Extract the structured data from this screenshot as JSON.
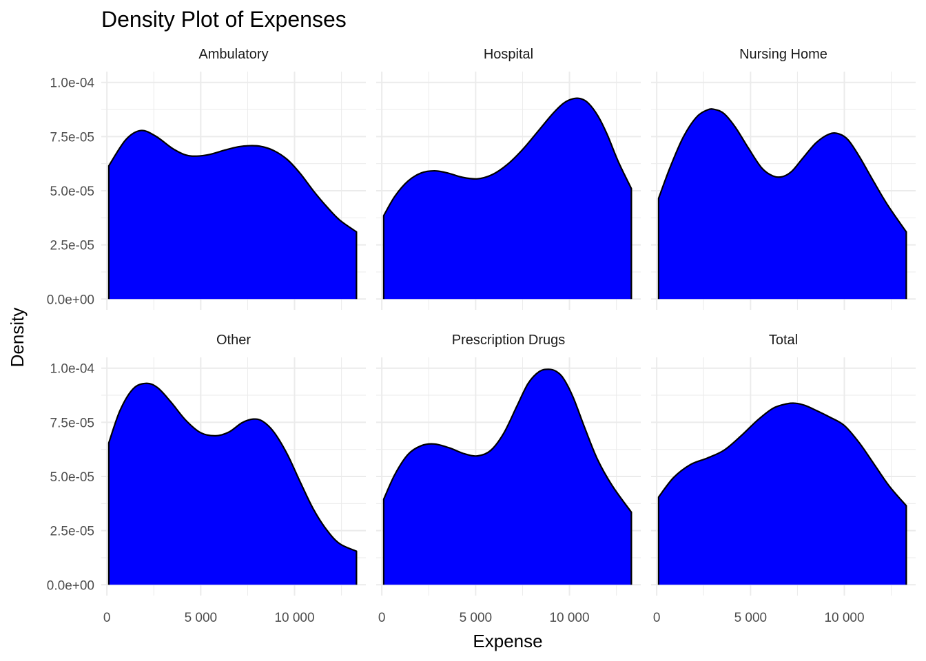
{
  "chart_data": {
    "type": "area",
    "title": "Density Plot of Expenses",
    "xlabel": "Expense",
    "ylabel": "Density",
    "fill_color": "#0000ff",
    "outline_color": "#000000",
    "grid": true,
    "xlim": [
      -300,
      13800
    ],
    "ylim": [
      -5e-06,
      0.000105
    ],
    "x_ticks": [
      0,
      5000,
      10000
    ],
    "x_tick_labels": [
      "0",
      "5 000",
      "10 000"
    ],
    "y_ticks": [
      0,
      2.5e-05,
      5e-05,
      7.5e-05,
      0.0001
    ],
    "y_tick_labels": [
      "0.0e+00",
      "2.5e-05",
      "5.0e-05",
      "7.5e-05",
      "1.0e-04"
    ],
    "x_range": [
      100,
      13300
    ],
    "panels": [
      {
        "name": "Ambulatory",
        "x": [
          100,
          1000,
          1800,
          2600,
          3500,
          4200,
          4800,
          5500,
          6300,
          7000,
          7600,
          8200,
          8900,
          9600,
          10300,
          11000,
          11700,
          12400,
          13300
        ],
        "y": [
          6.15e-05,
          7.35e-05,
          7.78e-05,
          7.52e-05,
          6.95e-05,
          6.65e-05,
          6.6e-05,
          6.68e-05,
          6.88e-05,
          7.03e-05,
          7.08e-05,
          7.05e-05,
          6.85e-05,
          6.45e-05,
          5.8e-05,
          5e-05,
          4.28e-05,
          3.65e-05,
          3.1e-05
        ]
      },
      {
        "name": "Hospital",
        "x": [
          100,
          700,
          1400,
          2100,
          2800,
          3500,
          4300,
          5100,
          5900,
          6700,
          7500,
          8300,
          9100,
          9700,
          10200,
          10600,
          11000,
          11500,
          12000,
          12600,
          13300
        ],
        "y": [
          3.85e-05,
          4.75e-05,
          5.45e-05,
          5.82e-05,
          5.92e-05,
          5.82e-05,
          5.62e-05,
          5.55e-05,
          5.75e-05,
          6.22e-05,
          6.9e-05,
          7.72e-05,
          8.55e-05,
          9.05e-05,
          9.25e-05,
          9.25e-05,
          9.05e-05,
          8.48e-05,
          7.62e-05,
          6.35e-05,
          5.1e-05
        ]
      },
      {
        "name": "Nursing Home",
        "x": [
          100,
          700,
          1400,
          2100,
          2700,
          3100,
          3600,
          4200,
          4900,
          5600,
          6200,
          6700,
          7200,
          7800,
          8500,
          9200,
          9700,
          10200,
          10800,
          11500,
          12300,
          13300
        ],
        "y": [
          4.65e-05,
          6.05e-05,
          7.45e-05,
          8.38e-05,
          8.73e-05,
          8.75e-05,
          8.55e-05,
          7.92e-05,
          6.95e-05,
          6.05e-05,
          5.68e-05,
          5.65e-05,
          5.9e-05,
          6.52e-05,
          7.22e-05,
          7.62e-05,
          7.63e-05,
          7.35e-05,
          6.58e-05,
          5.52e-05,
          4.35e-05,
          3.1e-05
        ]
      },
      {
        "name": "Other",
        "x": [
          100,
          700,
          1400,
          2100,
          2700,
          3400,
          4200,
          5000,
          5800,
          6500,
          7200,
          7800,
          8300,
          8900,
          9600,
          10300,
          11000,
          11700,
          12400,
          13300
        ],
        "y": [
          6.55e-05,
          8.05e-05,
          9.05e-05,
          9.3e-05,
          9.1e-05,
          8.45e-05,
          7.6e-05,
          7.02e-05,
          6.88e-05,
          7.05e-05,
          7.48e-05,
          7.65e-05,
          7.55e-05,
          7.05e-05,
          6.05e-05,
          4.75e-05,
          3.5e-05,
          2.55e-05,
          1.9e-05,
          1.55e-05
        ]
      },
      {
        "name": "Prescription Drugs",
        "x": [
          100,
          700,
          1400,
          2100,
          2800,
          3600,
          4400,
          5100,
          5800,
          6500,
          7200,
          7800,
          8400,
          8900,
          9300,
          9700,
          10200,
          10800,
          11500,
          12300,
          13300
        ],
        "y": [
          3.95e-05,
          5.1e-05,
          6.02e-05,
          6.42e-05,
          6.5e-05,
          6.32e-05,
          6.05e-05,
          5.95e-05,
          6.2e-05,
          7e-05,
          8.25e-05,
          9.3e-05,
          9.85e-05,
          9.95e-05,
          9.85e-05,
          9.5e-05,
          8.65e-05,
          7.28e-05,
          5.78e-05,
          4.55e-05,
          3.35e-05
        ]
      },
      {
        "name": "Total",
        "x": [
          100,
          900,
          1800,
          2700,
          3600,
          4500,
          5400,
          6200,
          6900,
          7400,
          7900,
          8500,
          9200,
          10000,
          10800,
          11600,
          12400,
          13300
        ],
        "y": [
          4.05e-05,
          4.95e-05,
          5.55e-05,
          5.85e-05,
          6.22e-05,
          6.88e-05,
          7.62e-05,
          8.15e-05,
          8.35e-05,
          8.38e-05,
          8.28e-05,
          8.05e-05,
          7.75e-05,
          7.35e-05,
          6.55e-05,
          5.55e-05,
          4.55e-05,
          3.65e-05
        ]
      }
    ]
  }
}
